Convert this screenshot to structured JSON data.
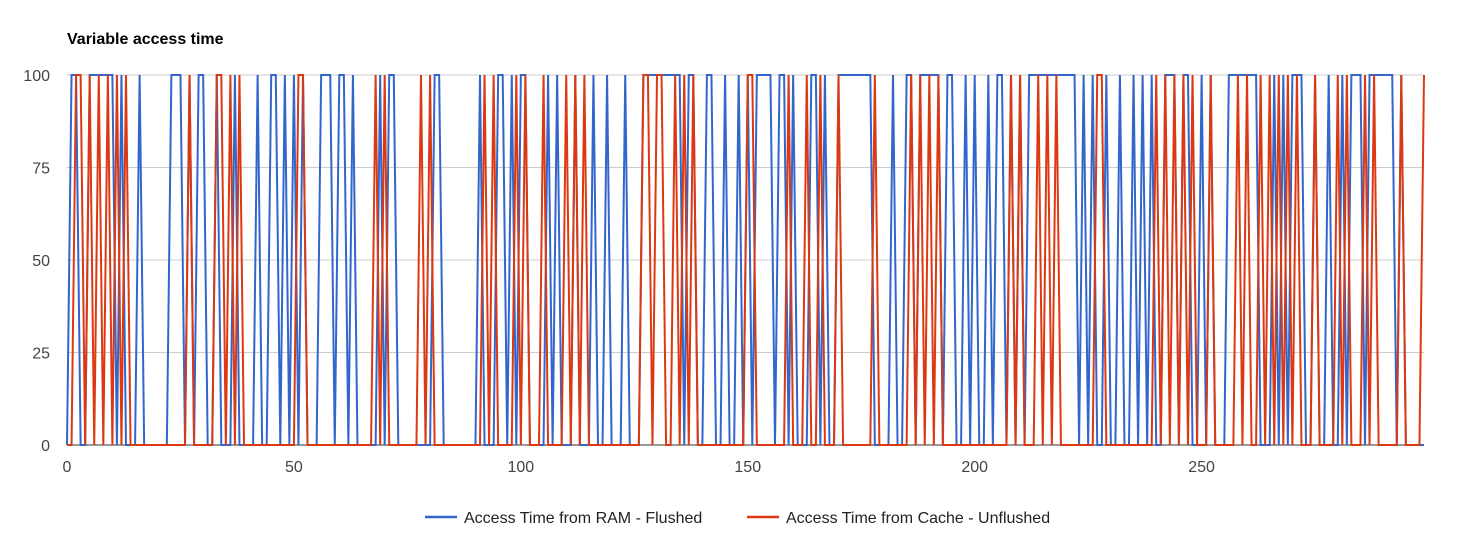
{
  "colors": {
    "ram": "#3366cc",
    "cache": "#dc3912",
    "grid": "#cccccc",
    "axis": "#333333"
  },
  "chart_data": {
    "type": "line",
    "title": "Variable access time",
    "xlabel": "",
    "ylabel": "",
    "xlim": [
      0,
      299
    ],
    "ylim": [
      0,
      100
    ],
    "x_ticks": [
      "0",
      "50",
      "100",
      "150",
      "200",
      "250"
    ],
    "x_tick_values": [
      0,
      50,
      100,
      150,
      200,
      250
    ],
    "y_ticks": [
      "0",
      "25",
      "50",
      "75",
      "100"
    ],
    "y_tick_values": [
      0,
      25,
      50,
      75,
      100
    ],
    "grid": true,
    "legend_position": "bottom",
    "series": [
      {
        "name": "Access Time from RAM - Flushed",
        "color": "#3366cc",
        "spikes_at_100": [
          1,
          2,
          5,
          6,
          7,
          8,
          9,
          10,
          12,
          16,
          23,
          24,
          25,
          27,
          29,
          30,
          33,
          37,
          42,
          45,
          46,
          48,
          50,
          52,
          56,
          57,
          58,
          60,
          61,
          63,
          69,
          71,
          72,
          81,
          82,
          91,
          95,
          96,
          98,
          100,
          101,
          106,
          108,
          112,
          116,
          119,
          123,
          127,
          128,
          129,
          130,
          131,
          132,
          133,
          134,
          135,
          137,
          138,
          141,
          142,
          145,
          148,
          150,
          152,
          153,
          154,
          155,
          157,
          158,
          160,
          164,
          165,
          167,
          170,
          171,
          172,
          173,
          174,
          175,
          176,
          177,
          182,
          185,
          186,
          188,
          189,
          190,
          191,
          192,
          194,
          195,
          198,
          200,
          203,
          205,
          206,
          208,
          210,
          212,
          213,
          214,
          215,
          216,
          217,
          218,
          219,
          220,
          221,
          222,
          224,
          226,
          229,
          232,
          235,
          237,
          239,
          242,
          243,
          244,
          246,
          247,
          250,
          252,
          256,
          257,
          258,
          259,
          260,
          261,
          262,
          266,
          268,
          270,
          271,
          272,
          275,
          278,
          281,
          283,
          284,
          285,
          287,
          288,
          289,
          290,
          291,
          292,
          294
        ]
      },
      {
        "name": "Access Time from Cache - Unflushed",
        "color": "#dc3912",
        "spikes_at_100": [
          2,
          3,
          5,
          7,
          9,
          11,
          13,
          27,
          33,
          34,
          36,
          38,
          51,
          52,
          68,
          70,
          78,
          80,
          92,
          94,
          99,
          101,
          105,
          110,
          112,
          114,
          127,
          128,
          130,
          131,
          134,
          136,
          138,
          150,
          151,
          159,
          163,
          166,
          170,
          178,
          186,
          188,
          190,
          192,
          208,
          210,
          214,
          216,
          218,
          227,
          228,
          240,
          242,
          244,
          246,
          248,
          252,
          258,
          260,
          263,
          265,
          267,
          269,
          271,
          275,
          280,
          282,
          286,
          288,
          294,
          299
        ]
      }
    ]
  }
}
